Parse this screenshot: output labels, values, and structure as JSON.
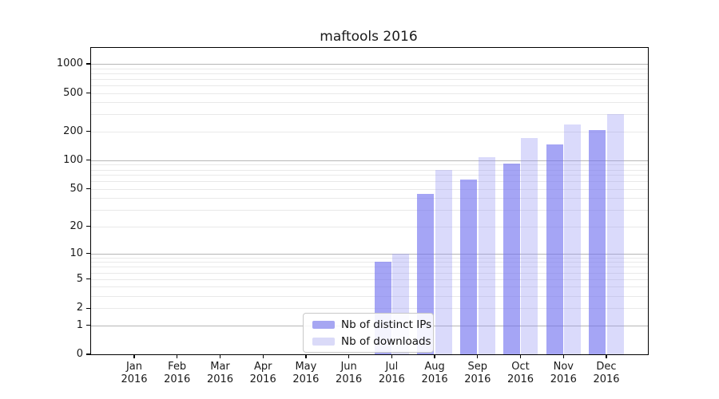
{
  "figure": {
    "title": "maftools 2016",
    "background": "#ffffff"
  },
  "chart_data": {
    "type": "bar",
    "title": "maftools 2016",
    "categories": [
      "Jan 2016",
      "Feb 2016",
      "Mar 2016",
      "Apr 2016",
      "May 2016",
      "Jun 2016",
      "Jul 2016",
      "Aug 2016",
      "Sep 2016",
      "Oct 2016",
      "Nov 2016",
      "Dec 2016"
    ],
    "series": [
      {
        "name": "Nb of distinct IPs",
        "color": "rgba(112,112,239,0.63)",
        "solid_color": "#a6a6f2",
        "values": [
          0,
          0,
          0,
          0,
          0,
          0,
          8,
          44,
          63,
          93,
          147,
          208
        ]
      },
      {
        "name": "Nb of downloads",
        "color": "rgba(150,150,243,0.35)",
        "solid_color": "#dadaf8",
        "values": [
          0,
          0,
          0,
          0,
          0,
          0,
          10,
          79,
          107,
          171,
          238,
          303
        ]
      }
    ],
    "y_scale": "log1p",
    "y_ticks": [
      0,
      1,
      2,
      5,
      10,
      20,
      50,
      100,
      200,
      500,
      1000
    ],
    "y_grid_major": [
      1,
      10,
      100,
      1000
    ],
    "ylim": [
      0,
      1400
    ],
    "xlabel": "",
    "ylabel": "",
    "grid": true,
    "legend_position": "lower center"
  },
  "colors": {
    "grid_major": "#b6b6b6",
    "grid_minor": "#e9e9e9",
    "axis": "#000000",
    "text": "#1a1a1a"
  }
}
